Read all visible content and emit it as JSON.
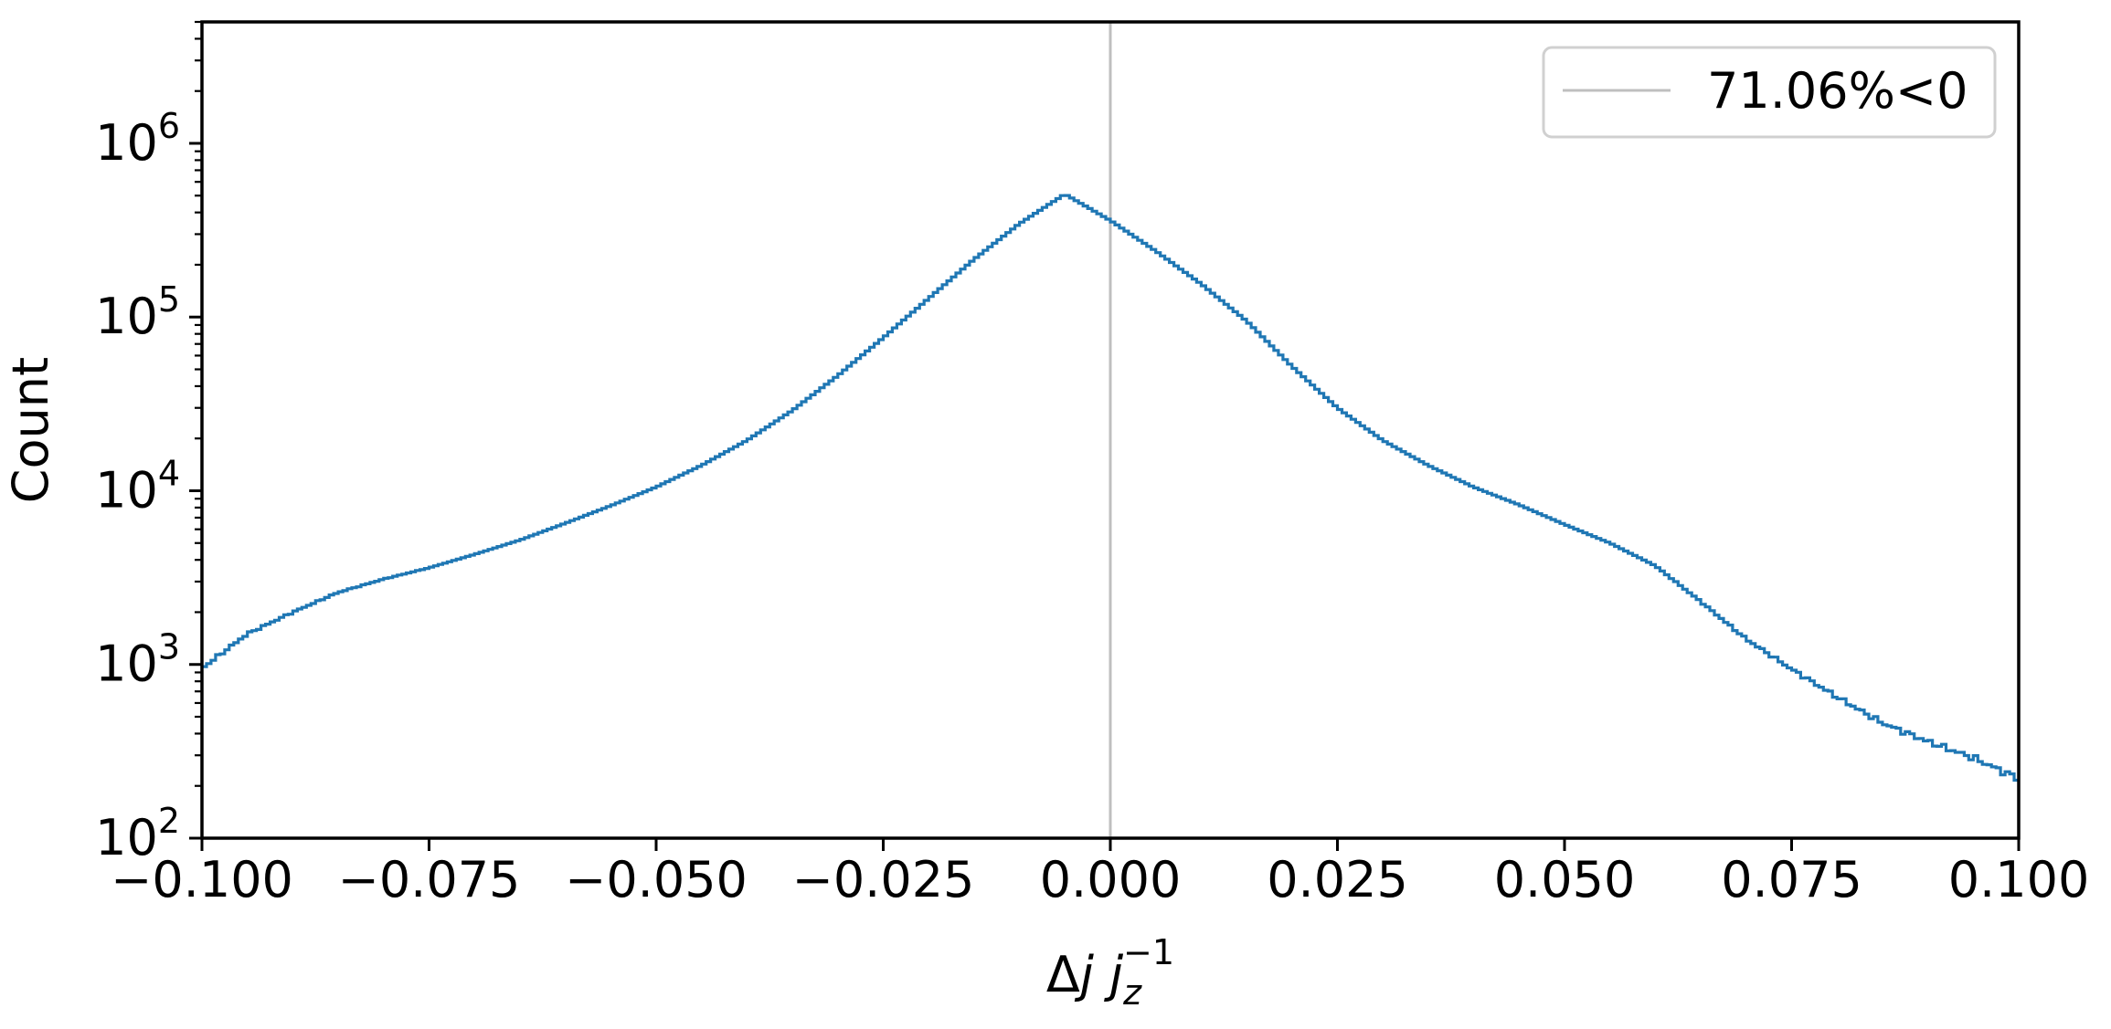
{
  "chart_data": {
    "type": "histogram",
    "xlabel": "Δj j_z^{-1}",
    "xlabel_parts": {
      "delta": "Δ",
      "j": "j",
      "jz_base": "j",
      "jz_sub": "z",
      "jz_sup": "−1"
    },
    "ylabel": "Count",
    "xlim": [
      -0.1,
      0.1
    ],
    "ylim": [
      100,
      5000000
    ],
    "y_scale": "log",
    "grid": false,
    "legend_position": "top-right",
    "x_ticks": [
      -0.1,
      -0.075,
      -0.05,
      -0.025,
      0.0,
      0.025,
      0.05,
      0.075,
      0.1
    ],
    "x_tick_labels": [
      "−0.100",
      "−0.075",
      "−0.050",
      "−0.025",
      "0.000",
      "0.025",
      "0.050",
      "0.075",
      "0.100"
    ],
    "y_ticks": [
      100,
      1000,
      10000,
      100000,
      1000000
    ],
    "y_tick_labels": [
      {
        "base": "10",
        "exp": "2"
      },
      {
        "base": "10",
        "exp": "3"
      },
      {
        "base": "10",
        "exp": "4"
      },
      {
        "base": "10",
        "exp": "5"
      },
      {
        "base": "10",
        "exp": "6"
      }
    ],
    "reference_line": {
      "x": 0.0,
      "label": "71.06%<0",
      "color": "#bfbfbf"
    },
    "series": [
      {
        "color": "#1f77b4",
        "style": "step",
        "x": [
          -0.1,
          -0.095,
          -0.09,
          -0.085,
          -0.08,
          -0.075,
          -0.07,
          -0.065,
          -0.06,
          -0.055,
          -0.05,
          -0.045,
          -0.04,
          -0.035,
          -0.03,
          -0.025,
          -0.02,
          -0.015,
          -0.01,
          -0.005,
          0.0,
          0.005,
          0.01,
          0.015,
          0.02,
          0.025,
          0.03,
          0.035,
          0.04,
          0.045,
          0.05,
          0.055,
          0.06,
          0.065,
          0.07,
          0.075,
          0.08,
          0.085,
          0.09,
          0.095,
          0.1
        ],
        "y": [
          950,
          1500,
          2000,
          2600,
          3100,
          3600,
          4300,
          5200,
          6500,
          8200,
          10500,
          14000,
          19500,
          29000,
          46000,
          76000,
          128000,
          215000,
          345000,
          510000,
          360000,
          240000,
          155000,
          95000,
          52000,
          30000,
          19500,
          14000,
          10500,
          8300,
          6400,
          5000,
          3700,
          2300,
          1400,
          940,
          650,
          460,
          360,
          290,
          220
        ]
      }
    ]
  }
}
